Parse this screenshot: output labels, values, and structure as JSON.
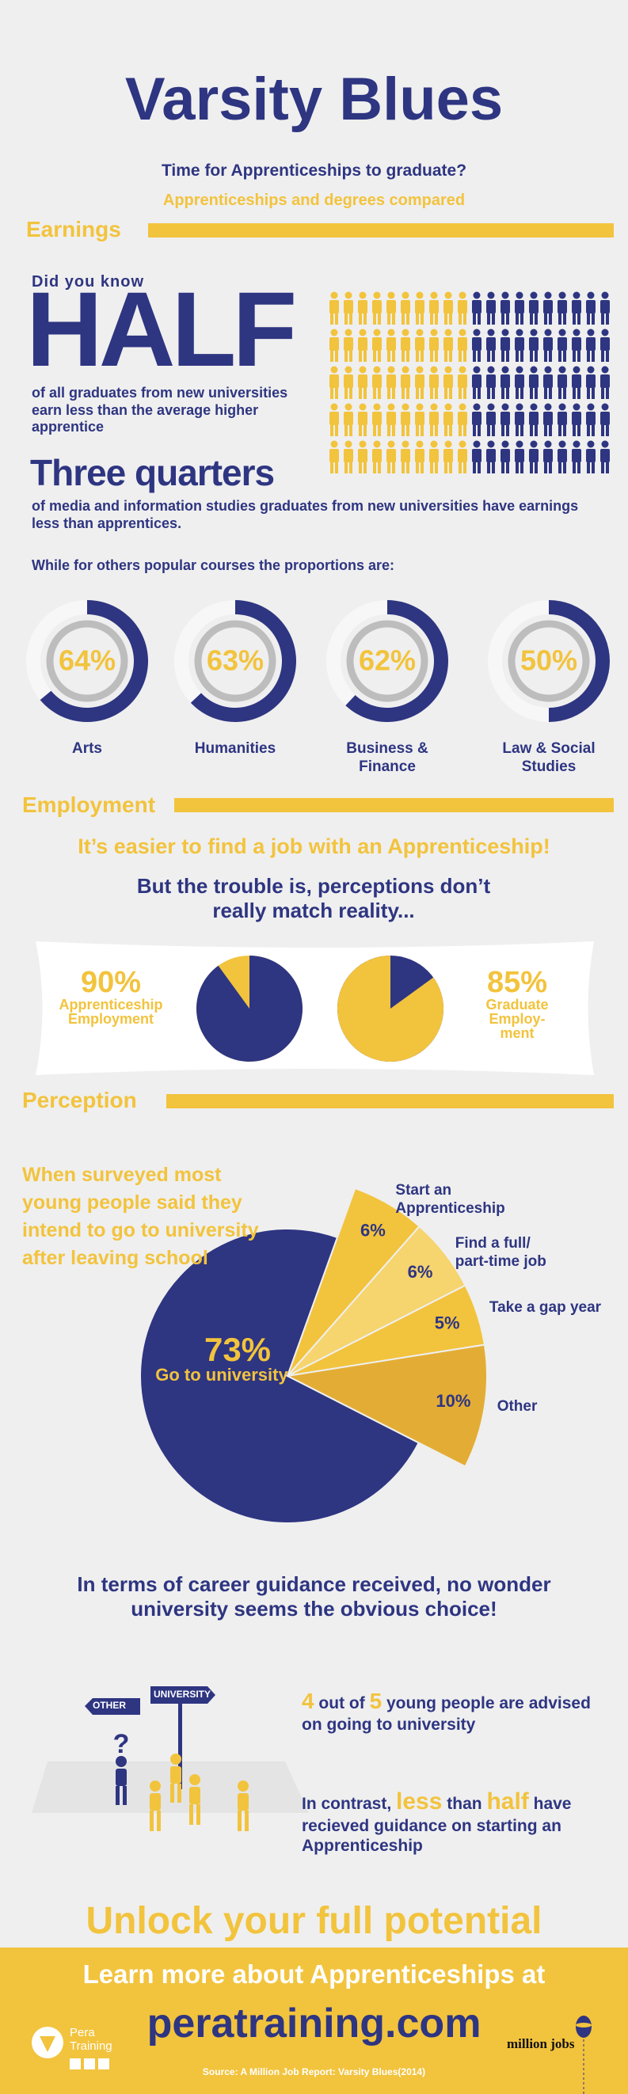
{
  "header": {
    "title": "Varsity Blues",
    "subtitle": "Time for Apprenticeships to graduate?",
    "tagline": "Apprenticeships and degrees compared"
  },
  "earnings": {
    "heading": "Earnings",
    "intro": "Did you know",
    "highlight": "HALF",
    "detail": "of all graduates from new universities earn less than the average higher apprentice",
    "highlight2": "Three quarters",
    "detail2": "of media and information studies graduates from new universities have earnings less than apprentices.",
    "lead": "While for others popular courses the proportions are:"
  },
  "course_chart": {
    "type": "donut",
    "categories": [
      "Arts",
      "Humanities",
      "Business & Finance",
      "Law & Social Studies"
    ],
    "values": [
      64,
      63,
      62,
      50
    ],
    "value_labels": [
      "64%",
      "63%",
      "62%",
      "50%"
    ],
    "color": "#2e3581",
    "track_color": "#f7f7f7",
    "label_color": "#f2c33d"
  },
  "employment": {
    "heading": "Employment",
    "claim": "It’s easier to find a job with an Apprenticeship!",
    "caveat": "But the trouble is, perceptions don’t really match reality...",
    "chart": {
      "type": "pie",
      "categories": [
        "Apprenticeship Employment",
        "Graduate Employ-ment"
      ],
      "values": [
        90,
        85
      ],
      "value_labels": [
        "90%",
        "85%"
      ],
      "colors": [
        "#2e3581",
        "#f2c33d"
      ],
      "rest_colors": [
        "#f2c33d",
        "#2e3581"
      ],
      "direction": [
        "clockwise",
        "counterclockwise"
      ]
    }
  },
  "perception": {
    "heading": "Perception",
    "survey": "When surveyed most young people said they intend to go to university after leaving school",
    "chart": {
      "type": "exploded-pie",
      "categories": [
        "Go to university",
        "Start an Apprenticeship",
        "Find a full/ part-time job",
        "Take a gap year",
        "Other"
      ],
      "values": [
        73,
        6,
        6,
        5,
        10
      ],
      "value_labels": [
        "73%",
        "6%",
        "6%",
        "5%",
        "10%"
      ],
      "colors": [
        "#2e3581",
        "#f2c33d",
        "#f6d46e",
        "#f2c33d",
        "#e3ad35"
      ],
      "exploded": [
        false,
        true,
        true,
        true,
        true
      ]
    }
  },
  "guidance": {
    "intro": "In terms of career guidance received, no wonder university seems the obvious choice!",
    "signs": [
      "OTHER",
      "UNIVERSITY"
    ],
    "university": [
      "4",
      "out of",
      "5",
      "young people are advised on going to university"
    ],
    "apprenticeship": [
      "In contrast,",
      "less",
      "than",
      "half",
      "have recieved guidance on starting an Apprenticeship"
    ]
  },
  "footer": {
    "cta": "Unlock your full potential",
    "learn": "Learn more about Apprenticeships at",
    "url": "peratraining.com",
    "source": "Source: A Million Job Report: Varsity Blues(2014)",
    "brand": "Pera Training",
    "partner": "million jobs"
  }
}
